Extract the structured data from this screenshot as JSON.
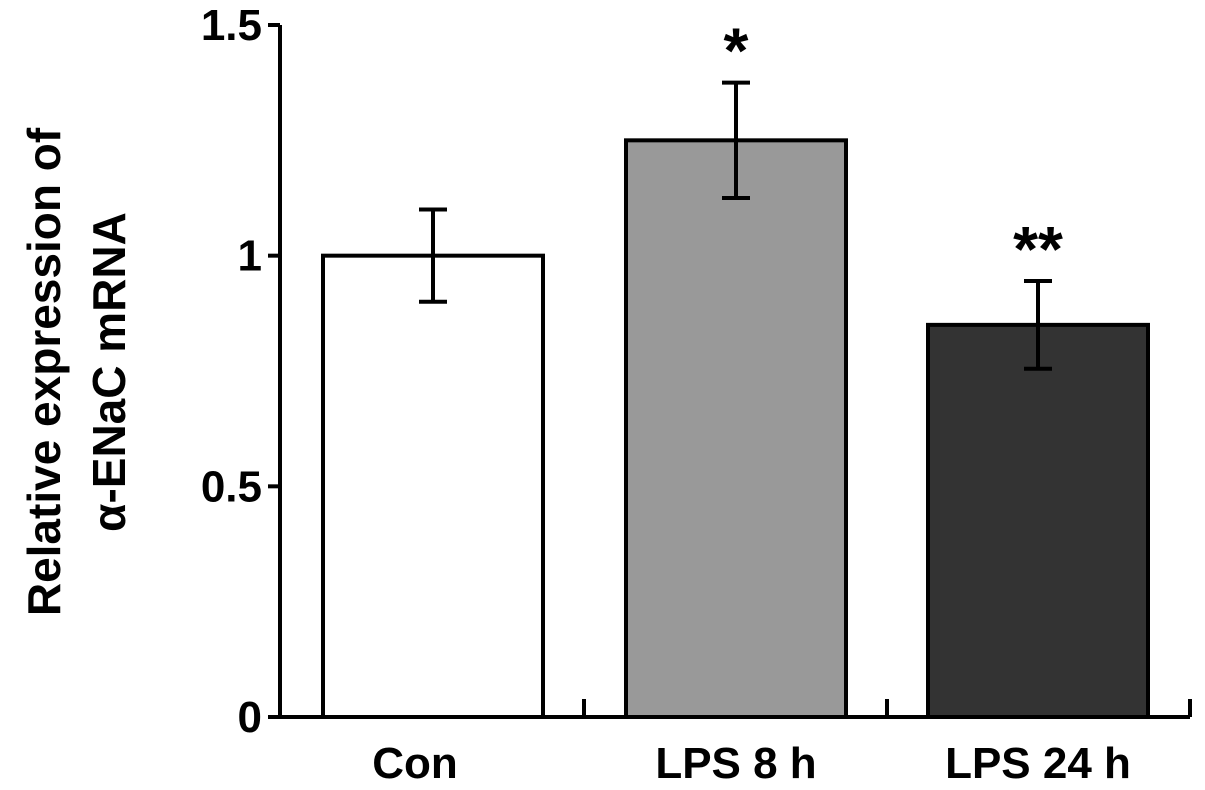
{
  "chart_data": {
    "type": "bar",
    "title": "",
    "xlabel": "",
    "ylabel_lines": [
      "Relative expression of",
      "α-ENaC mRNA"
    ],
    "ylim": [
      0,
      1.5
    ],
    "yticks": [
      0,
      0.5,
      1,
      1.5
    ],
    "ytick_labels": [
      "0",
      "0.5",
      "1",
      "1.5"
    ],
    "categories": [
      "Con",
      "LPS 8 h",
      "LPS 24 h"
    ],
    "values": [
      1.0,
      1.25,
      0.85
    ],
    "errors": [
      0.1,
      0.125,
      0.095
    ],
    "significance": [
      "",
      "*",
      "**"
    ],
    "bar_colors": [
      "#ffffff",
      "#999999",
      "#333333"
    ],
    "grid": false,
    "legend": "none"
  }
}
